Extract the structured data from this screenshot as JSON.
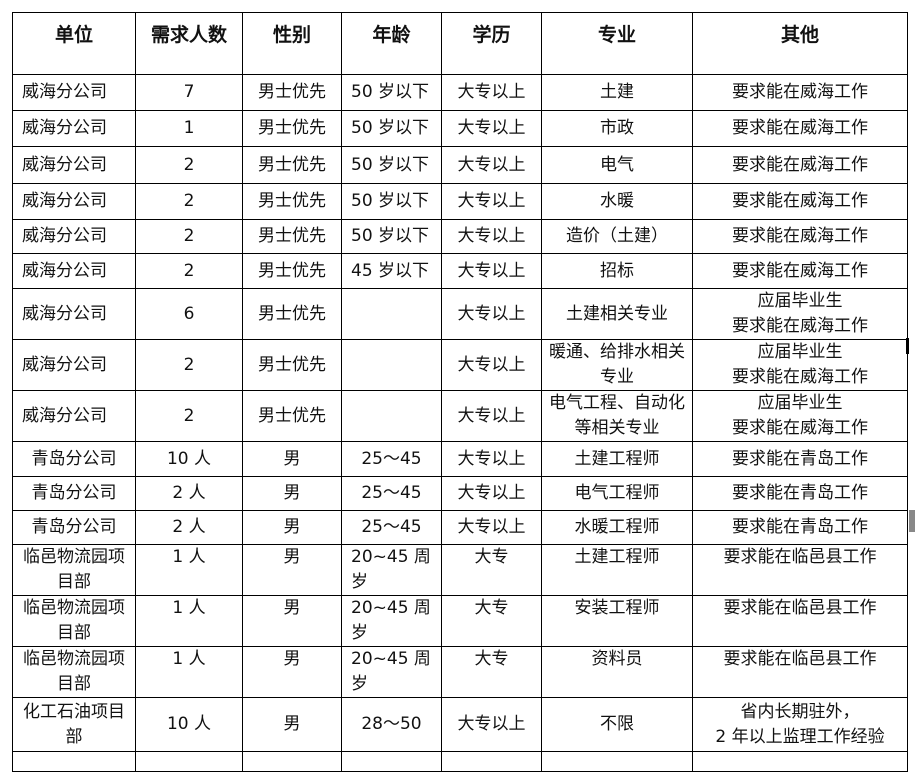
{
  "table": {
    "headers": [
      "单位",
      "需求人数",
      "性别",
      "年龄",
      "学历",
      "专业",
      "其他"
    ],
    "rows": [
      [
        "威海分公司",
        "7",
        "男士优先",
        "50 岁以下",
        "大专以上",
        "土建",
        "要求能在威海工作"
      ],
      [
        "威海分公司",
        "1",
        "男士优先",
        "50 岁以下",
        "大专以上",
        "市政",
        "要求能在威海工作"
      ],
      [
        "威海分公司",
        "2",
        "男士优先",
        "50 岁以下",
        "大专以上",
        "电气",
        "要求能在威海工作"
      ],
      [
        "威海分公司",
        "2",
        "男士优先",
        "50 岁以下",
        "大专以上",
        "水暖",
        "要求能在威海工作"
      ],
      [
        "威海分公司",
        "2",
        "男士优先",
        "50 岁以下",
        "大专以上",
        "造价（土建）",
        "要求能在威海工作"
      ],
      [
        "威海分公司",
        "2",
        "男士优先",
        "45 岁以下",
        "大专以上",
        "招标",
        "要求能在威海工作"
      ],
      [
        "威海分公司",
        "6",
        "男士优先",
        "",
        "大专以上",
        "土建相关专业",
        "应届毕业生\n要求能在威海工作"
      ],
      [
        "威海分公司",
        "2",
        "男士优先",
        "",
        "大专以上",
        "暖通、给排水相关专业",
        "应届毕业生\n要求能在威海工作"
      ],
      [
        "威海分公司",
        "2",
        "男士优先",
        "",
        "大专以上",
        "电气工程、自动化等相关专业",
        "应届毕业生\n要求能在威海工作"
      ],
      [
        "青岛分公司",
        "10 人",
        "男",
        "25～45",
        "大专以上",
        "土建工程师",
        "要求能在青岛工作"
      ],
      [
        "青岛分公司",
        "2 人",
        "男",
        "25～45",
        "大专以上",
        "电气工程师",
        "要求能在青岛工作"
      ],
      [
        "青岛分公司",
        "2 人",
        "男",
        "25～45",
        "大专以上",
        "水暖工程师",
        "要求能在青岛工作"
      ],
      [
        "临邑物流园项目部",
        "1 人",
        "男",
        "20~45  周岁",
        "大专",
        "土建工程师",
        "要求能在临邑县工作"
      ],
      [
        "临邑物流园项目部",
        "1 人",
        "男",
        "20~45  周岁",
        "大专",
        "安装工程师",
        "要求能在临邑县工作"
      ],
      [
        "临邑物流园项目部",
        "1 人",
        "男",
        "20~45  周岁",
        "大专",
        "资料员",
        "要求能在临邑县工作"
      ],
      [
        "化工石油项目部",
        "10 人",
        "男",
        "28～50",
        "大专以上",
        "不限",
        "省内长期驻外，\n2 年以上监理工作经验"
      ]
    ]
  }
}
